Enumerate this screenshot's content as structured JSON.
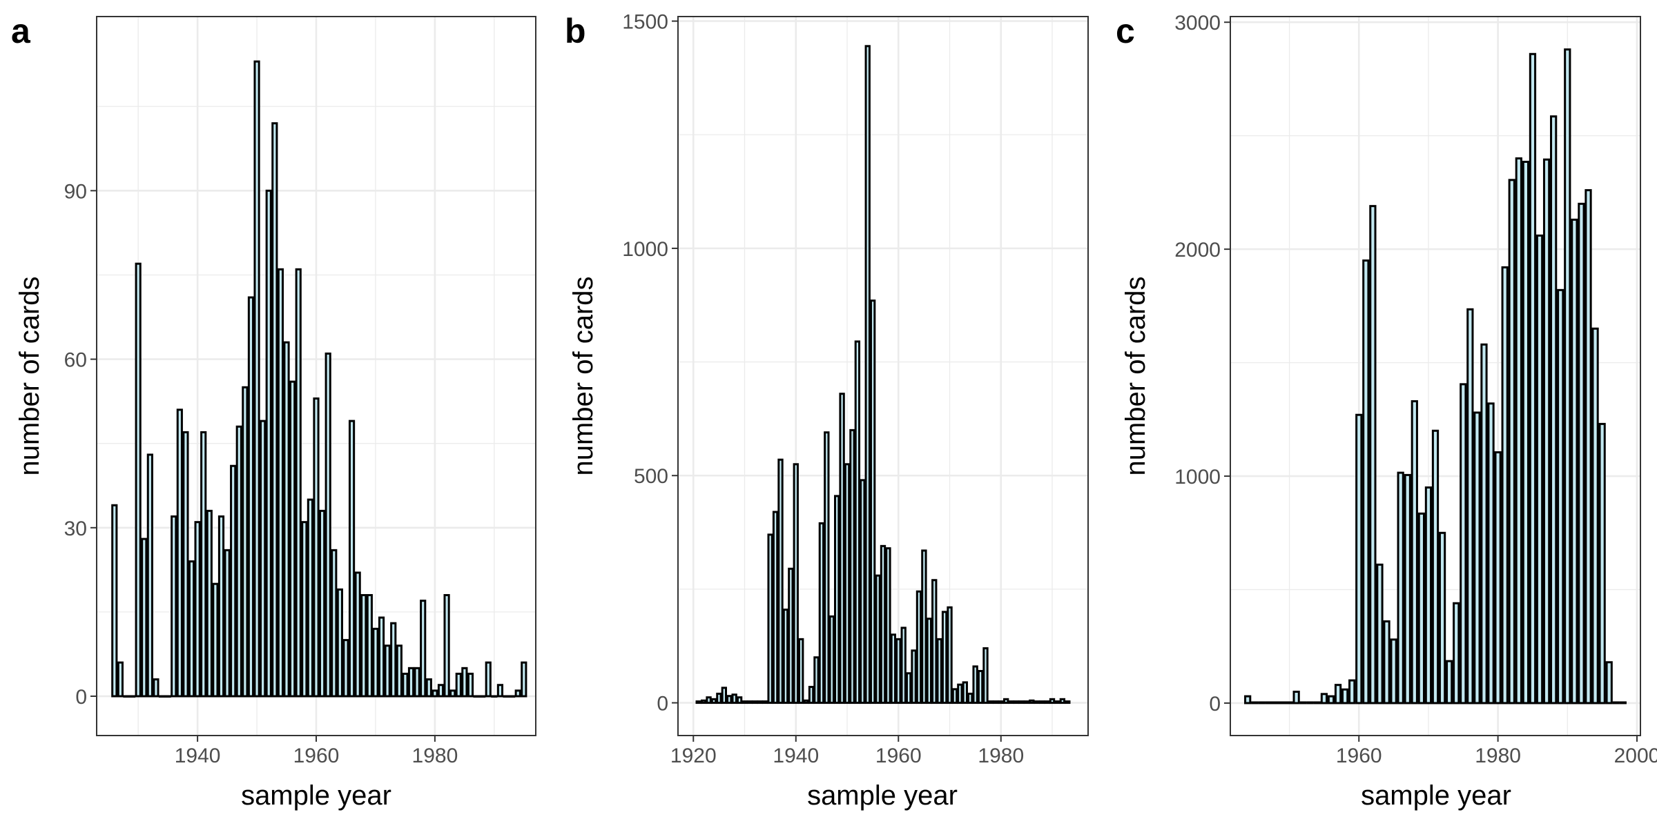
{
  "chart_data": [
    {
      "type": "bar",
      "panel_label": "a",
      "xlabel": "sample year",
      "ylabel": "number of cards",
      "xlim": [
        1923,
        1997
      ],
      "ylim": [
        -7,
        121
      ],
      "xticks": [
        1940,
        1960,
        1980
      ],
      "yticks": [
        0,
        30,
        60,
        90
      ],
      "x": [
        1926,
        1927,
        1928,
        1929,
        1930,
        1931,
        1932,
        1933,
        1934,
        1935,
        1936,
        1937,
        1938,
        1939,
        1940,
        1941,
        1942,
        1943,
        1944,
        1945,
        1946,
        1947,
        1948,
        1949,
        1950,
        1951,
        1952,
        1953,
        1954,
        1955,
        1956,
        1957,
        1958,
        1959,
        1960,
        1961,
        1962,
        1963,
        1964,
        1965,
        1966,
        1967,
        1968,
        1969,
        1970,
        1971,
        1972,
        1973,
        1974,
        1975,
        1976,
        1977,
        1978,
        1979,
        1980,
        1981,
        1982,
        1983,
        1984,
        1985,
        1986,
        1987,
        1988,
        1989,
        1990,
        1991,
        1992,
        1993,
        1994,
        1995
      ],
      "values": [
        34,
        6,
        0,
        0,
        77,
        28,
        43,
        3,
        0,
        0,
        32,
        51,
        47,
        24,
        31,
        47,
        33,
        20,
        32,
        26,
        41,
        48,
        55,
        71,
        113,
        49,
        90,
        102,
        76,
        63,
        56,
        76,
        31,
        35,
        53,
        33,
        61,
        26,
        19,
        10,
        49,
        22,
        18,
        18,
        12,
        14,
        9,
        13,
        9,
        4,
        5,
        5,
        17,
        3,
        1,
        2,
        18,
        1,
        4,
        5,
        4,
        0,
        0,
        6,
        0,
        2,
        0,
        0,
        1,
        6
      ]
    },
    {
      "type": "bar",
      "panel_label": "b",
      "xlabel": "sample year",
      "ylabel": "number of cards",
      "xlim": [
        1917,
        1997
      ],
      "ylim": [
        -72,
        1510
      ],
      "xticks": [
        1920,
        1940,
        1960,
        1980
      ],
      "yticks": [
        0,
        500,
        1000,
        1500
      ],
      "x": [
        1921,
        1922,
        1923,
        1924,
        1925,
        1926,
        1927,
        1928,
        1929,
        1930,
        1931,
        1932,
        1933,
        1934,
        1935,
        1936,
        1937,
        1938,
        1939,
        1940,
        1941,
        1942,
        1943,
        1944,
        1945,
        1946,
        1947,
        1948,
        1949,
        1950,
        1951,
        1952,
        1953,
        1954,
        1955,
        1956,
        1957,
        1958,
        1959,
        1960,
        1961,
        1962,
        1963,
        1964,
        1965,
        1966,
        1967,
        1968,
        1969,
        1970,
        1971,
        1972,
        1973,
        1974,
        1975,
        1976,
        1977,
        1978,
        1979,
        1980,
        1981,
        1982,
        1983,
        1984,
        1985,
        1986,
        1987,
        1988,
        1989,
        1990,
        1991,
        1992,
        1993
      ],
      "values": [
        3,
        5,
        12,
        8,
        20,
        33,
        15,
        18,
        12,
        3,
        3,
        3,
        3,
        3,
        370,
        420,
        535,
        205,
        295,
        525,
        140,
        5,
        35,
        100,
        395,
        595,
        190,
        455,
        680,
        525,
        600,
        795,
        490,
        1445,
        885,
        280,
        345,
        340,
        150,
        140,
        165,
        65,
        115,
        245,
        335,
        185,
        270,
        140,
        200,
        210,
        30,
        40,
        45,
        20,
        80,
        70,
        120,
        3,
        3,
        3,
        8,
        3,
        3,
        3,
        3,
        5,
        3,
        3,
        3,
        8,
        3,
        8,
        3
      ]
    },
    {
      "type": "bar",
      "panel_label": "c",
      "xlabel": "sample year",
      "ylabel": "number of cards",
      "xlim": [
        1941.5,
        2000.5
      ],
      "ylim": [
        -143,
        3025
      ],
      "xticks": [
        1960,
        1980,
        2000
      ],
      "yticks": [
        0,
        1000,
        2000,
        3000
      ],
      "x": [
        1944,
        1945,
        1946,
        1947,
        1948,
        1949,
        1950,
        1951,
        1952,
        1953,
        1954,
        1955,
        1956,
        1957,
        1958,
        1959,
        1960,
        1961,
        1962,
        1963,
        1964,
        1965,
        1966,
        1967,
        1968,
        1969,
        1970,
        1971,
        1972,
        1973,
        1974,
        1975,
        1976,
        1977,
        1978,
        1979,
        1980,
        1981,
        1982,
        1983,
        1984,
        1985,
        1986,
        1987,
        1988,
        1989,
        1990,
        1991,
        1992,
        1993,
        1994,
        1995,
        1996,
        1997,
        1998
      ],
      "values": [
        30,
        3,
        3,
        3,
        3,
        3,
        3,
        50,
        3,
        3,
        3,
        40,
        30,
        80,
        60,
        100,
        1270,
        1950,
        2190,
        610,
        360,
        280,
        1015,
        1005,
        1330,
        835,
        950,
        1200,
        750,
        185,
        440,
        1405,
        1735,
        1280,
        1580,
        1320,
        1105,
        1920,
        2305,
        2400,
        2385,
        2860,
        2060,
        2395,
        2585,
        1820,
        2880,
        2130,
        2200,
        2260,
        1650,
        1230,
        180,
        3,
        3
      ]
    }
  ]
}
